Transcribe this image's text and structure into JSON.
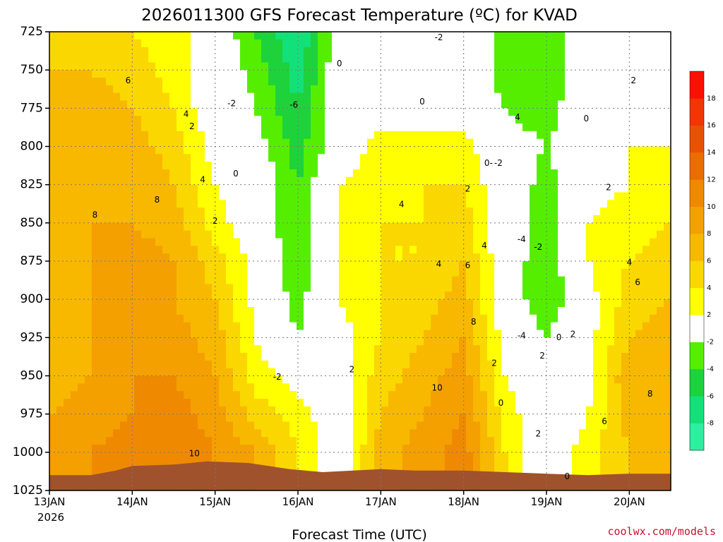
{
  "chart_data": {
    "type": "heatmap",
    "title": "2026011300 GFS Forecast Temperature (ºC) for KVAD",
    "xlabel": "Forecast Time (UTC)",
    "ylabel": "",
    "y_scale": "pressure (inverted)",
    "ylim": [
      1025,
      725
    ],
    "y_ticks": [
      "725",
      "750",
      "775",
      "800",
      "825",
      "850",
      "875",
      "900",
      "925",
      "950",
      "975",
      "1000",
      "1025"
    ],
    "x_ticks": [
      "13JAN",
      "14JAN",
      "15JAN",
      "16JAN",
      "17JAN",
      "18JAN",
      "19JAN",
      "20JAN"
    ],
    "x_year_label": "2026",
    "grid": true,
    "colorbar": {
      "placement": "right",
      "levels": [
        -10,
        -8,
        -6,
        -4,
        -2,
        2,
        4,
        6,
        8,
        10,
        12,
        14,
        16,
        18,
        20
      ],
      "labels": [
        "-8",
        "-6",
        "-4",
        "-2",
        "2",
        "4",
        "6",
        "8",
        "10",
        "12",
        "14",
        "16",
        "18"
      ],
      "colors": [
        "#2eeea0",
        "#14e07a",
        "#1ed23c",
        "#55ee00",
        "#ffffff",
        "#ffff00",
        "#fbd700",
        "#f8b800",
        "#f4a000",
        "#ef8a00",
        "#ea6d00",
        "#e65300",
        "#f13600",
        "#fe1000"
      ]
    },
    "columns_x": [
      "13JAN",
      "13JAN 12Z",
      "14JAN",
      "14JAN 12Z",
      "15JAN",
      "15JAN 12Z",
      "16JAN",
      "16JAN 12Z",
      "17JAN",
      "17JAN 12Z",
      "18JAN",
      "18JAN 12Z",
      "19JAN",
      "19JAN 12Z",
      "20JAN",
      "20JAN 12Z"
    ],
    "columns_t": [
      0,
      0.5,
      1,
      1.5,
      2,
      2.5,
      3,
      3.5,
      4,
      4.5,
      5,
      5.5,
      6,
      6.5,
      7,
      7.5
    ],
    "rows_p": [
      1000,
      975,
      950,
      925,
      900,
      875,
      850,
      825,
      800,
      775,
      750,
      725
    ],
    "values": [
      [
        9,
        10,
        11,
        12,
        10,
        8,
        4,
        0,
        7,
        9,
        11,
        4,
        0,
        3,
        6,
        8
      ],
      [
        8,
        9,
        10,
        11,
        9,
        5,
        3,
        0,
        6,
        8,
        10,
        3,
        0,
        2,
        7,
        8
      ],
      [
        7,
        8,
        10,
        10,
        8,
        3,
        1,
        1,
        5,
        7,
        9,
        2,
        -1,
        1,
        8,
        8
      ],
      [
        7,
        8,
        9,
        9,
        7,
        2,
        -2,
        1,
        4,
        6,
        8,
        1,
        -2,
        1,
        6,
        7
      ],
      [
        7,
        8,
        9,
        8,
        6,
        1,
        -3,
        2,
        4,
        5,
        7,
        0,
        -4,
        1,
        5,
        6
      ],
      [
        7,
        8,
        9,
        8,
        5,
        1,
        -4,
        2,
        4,
        4,
        6,
        0,
        -4,
        2,
        4,
        5
      ],
      [
        7,
        8,
        8,
        7,
        3,
        0,
        -4,
        2,
        4,
        4,
        5,
        0,
        -3,
        2,
        3,
        4
      ],
      [
        7,
        7,
        8,
        6,
        2,
        0,
        -4,
        2,
        3,
        4,
        4,
        0,
        -3,
        1,
        2,
        3
      ],
      [
        7,
        7,
        7,
        5,
        1,
        -1,
        -5,
        0,
        3,
        3,
        3,
        -1,
        -2,
        0,
        2,
        2
      ],
      [
        6,
        7,
        6,
        4,
        0,
        -2,
        -6,
        0,
        1,
        0,
        0,
        -2,
        -3,
        0,
        2,
        1
      ],
      [
        6,
        6,
        5,
        3,
        0,
        -3,
        -7,
        0,
        0,
        0,
        0,
        -3,
        -4,
        0,
        2,
        0
      ],
      [
        5,
        6,
        4,
        3,
        0,
        -4,
        -8,
        -1,
        0,
        0,
        0,
        -3,
        -4,
        0,
        1,
        0
      ]
    ],
    "contour_labels": [
      {
        "t": 0.95,
        "p": 757,
        "text": "6"
      },
      {
        "t": 1.3,
        "p": 835,
        "text": "8"
      },
      {
        "t": 0.55,
        "p": 845,
        "text": "8"
      },
      {
        "t": 1.65,
        "p": 779,
        "text": "4"
      },
      {
        "t": 1.72,
        "p": 787,
        "text": "2"
      },
      {
        "t": 1.85,
        "p": 822,
        "text": "4"
      },
      {
        "t": 2.0,
        "p": 849,
        "text": "2"
      },
      {
        "t": 1.75,
        "p": 1001,
        "text": "10"
      },
      {
        "t": 2.2,
        "p": 772,
        "text": "-2"
      },
      {
        "t": 2.25,
        "p": 818,
        "text": "0"
      },
      {
        "t": 2.95,
        "p": 773,
        "text": "-6"
      },
      {
        "t": 2.75,
        "p": 951,
        "text": "-2"
      },
      {
        "t": 3.5,
        "p": 746,
        "text": "0"
      },
      {
        "t": 3.65,
        "p": 946,
        "text": "2"
      },
      {
        "t": 4.25,
        "p": 838,
        "text": "4"
      },
      {
        "t": 4.5,
        "p": 771,
        "text": "0"
      },
      {
        "t": 4.7,
        "p": 729,
        "text": "-2"
      },
      {
        "t": 4.7,
        "p": 877,
        "text": "4"
      },
      {
        "t": 4.68,
        "p": 958,
        "text": "10"
      },
      {
        "t": 5.05,
        "p": 828,
        "text": "2"
      },
      {
        "t": 5.05,
        "p": 878,
        "text": "6"
      },
      {
        "t": 5.12,
        "p": 915,
        "text": "8"
      },
      {
        "t": 5.25,
        "p": 865,
        "text": "4"
      },
      {
        "t": 5.3,
        "p": 811,
        "text": "0-"
      },
      {
        "t": 5.42,
        "p": 811,
        "text": "-2"
      },
      {
        "t": 5.37,
        "p": 942,
        "text": "2"
      },
      {
        "t": 5.45,
        "p": 968,
        "text": "0"
      },
      {
        "t": 5.65,
        "p": 781,
        "text": "4"
      },
      {
        "t": 5.7,
        "p": 861,
        "text": "-4"
      },
      {
        "t": 5.9,
        "p": 866,
        "text": "-2"
      },
      {
        "t": 5.7,
        "p": 924,
        "text": "-4"
      },
      {
        "t": 5.95,
        "p": 937,
        "text": "2"
      },
      {
        "t": 5.9,
        "p": 988,
        "text": "2"
      },
      {
        "t": 6.15,
        "p": 925,
        "text": "0"
      },
      {
        "t": 6.32,
        "p": 923,
        "text": "2"
      },
      {
        "t": 6.25,
        "p": 1016,
        "text": "0"
      },
      {
        "t": 6.48,
        "p": 782,
        "text": "0"
      },
      {
        "t": 6.7,
        "p": 980,
        "text": "6"
      },
      {
        "t": 6.75,
        "p": 827,
        "text": "2"
      },
      {
        "t": 7.05,
        "p": 757,
        "text": "2"
      },
      {
        "t": 7.0,
        "p": 876,
        "text": "4"
      },
      {
        "t": 7.1,
        "p": 889,
        "text": "6"
      },
      {
        "t": 7.25,
        "p": 962,
        "text": "8"
      }
    ]
  },
  "credit": "coolwx.com/models",
  "colors": {
    "terrain": "#a0522d",
    "zero_contour": "#b0005a",
    "contour": "#000000"
  }
}
